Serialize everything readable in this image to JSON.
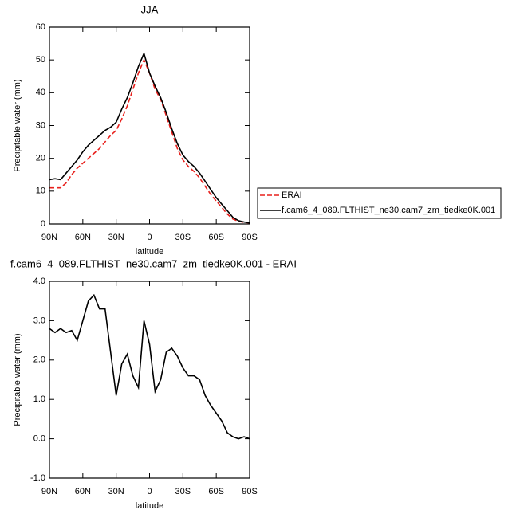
{
  "chart_data": [
    {
      "type": "line",
      "title": "JJA",
      "xlabel": "latitude",
      "ylabel": "Precipitable water (mm)",
      "x": [
        90,
        85,
        80,
        75,
        70,
        65,
        60,
        55,
        50,
        45,
        40,
        35,
        30,
        25,
        20,
        15,
        10,
        5,
        0,
        -5,
        -10,
        -15,
        -20,
        -25,
        -30,
        -35,
        -40,
        -45,
        -50,
        -55,
        -60,
        -65,
        -70,
        -75,
        -80,
        -85,
        -90
      ],
      "series": [
        {
          "name": "ERAI",
          "color": "#e8201c",
          "dashed": true,
          "values": [
            11,
            11,
            11,
            12.5,
            15,
            17,
            18.5,
            20,
            21.5,
            23,
            25,
            27,
            28.5,
            32,
            36,
            41,
            46,
            50,
            46,
            41,
            38,
            33,
            28,
            23,
            19.5,
            17.5,
            16,
            14,
            11.5,
            9,
            7,
            5,
            3,
            1.5,
            0.8,
            0.5,
            0.3
          ]
        },
        {
          "name": "f.cam6_4_089.FLTHIST_ne30.cam7_zm_tiedke0K.001",
          "color": "#000000",
          "dashed": false,
          "values": [
            13.5,
            13.8,
            13.5,
            15.5,
            17.5,
            19.5,
            22,
            24,
            25.5,
            27,
            28.5,
            29.5,
            31,
            35,
            38.5,
            43,
            48,
            52,
            46,
            42,
            38.5,
            34,
            29,
            24.5,
            21,
            19,
            17.5,
            15.5,
            13,
            10.5,
            8,
            6,
            4,
            2,
            1,
            0.6,
            0.3
          ]
        }
      ],
      "xlim": [
        90,
        -90
      ],
      "xticks": [
        {
          "value": 90,
          "label": "90N"
        },
        {
          "value": 60,
          "label": "60N"
        },
        {
          "value": 30,
          "label": "30N"
        },
        0,
        {
          "value": -30,
          "label": "30S"
        },
        {
          "value": -60,
          "label": "60S"
        },
        {
          "value": -90,
          "label": "90S"
        }
      ],
      "ylim": [
        0,
        60
      ],
      "yticks": [
        0,
        10,
        20,
        30,
        40,
        50,
        60
      ]
    },
    {
      "type": "line",
      "title": "f.cam6_4_089.FLTHIST_ne30.cam7_zm_tiedke0K.001 - ERAI",
      "xlabel": "latitude",
      "ylabel": "Precipitable water (mm)",
      "x": [
        90,
        85,
        80,
        75,
        70,
        65,
        60,
        55,
        50,
        45,
        40,
        35,
        30,
        25,
        20,
        15,
        10,
        5,
        0,
        -5,
        -10,
        -15,
        -20,
        -25,
        -30,
        -35,
        -40,
        -45,
        -50,
        -55,
        -60,
        -65,
        -70,
        -75,
        -80,
        -85,
        -90
      ],
      "series": [
        {
          "color": "#000000",
          "dashed": false,
          "values": [
            2.8,
            2.7,
            2.8,
            2.7,
            2.75,
            2.5,
            3.0,
            3.5,
            3.65,
            3.3,
            3.3,
            2.2,
            1.1,
            1.9,
            2.15,
            1.6,
            1.3,
            3.0,
            2.4,
            1.2,
            1.5,
            2.2,
            2.3,
            2.1,
            1.8,
            1.6,
            1.6,
            1.5,
            1.1,
            0.85,
            0.65,
            0.45,
            0.15,
            0.05,
            0.0,
            0.05,
            0.0
          ]
        }
      ],
      "xlim": [
        90,
        -90
      ],
      "xticks": [
        {
          "value": 90,
          "label": "90N"
        },
        {
          "value": 60,
          "label": "60N"
        },
        {
          "value": 30,
          "label": "30N"
        },
        0,
        {
          "value": -30,
          "label": "30S"
        },
        {
          "value": -60,
          "label": "60S"
        },
        {
          "value": -90,
          "label": "90S"
        }
      ],
      "ylim": [
        -1,
        4
      ],
      "yticks": [
        {
          "value": -1,
          "label": "-1.0"
        },
        {
          "value": 0,
          "label": "0.0"
        },
        {
          "value": 1,
          "label": "1.0"
        },
        {
          "value": 2,
          "label": "2.0"
        },
        {
          "value": 3,
          "label": "3.0"
        },
        {
          "value": 4,
          "label": "4.0"
        }
      ]
    }
  ]
}
